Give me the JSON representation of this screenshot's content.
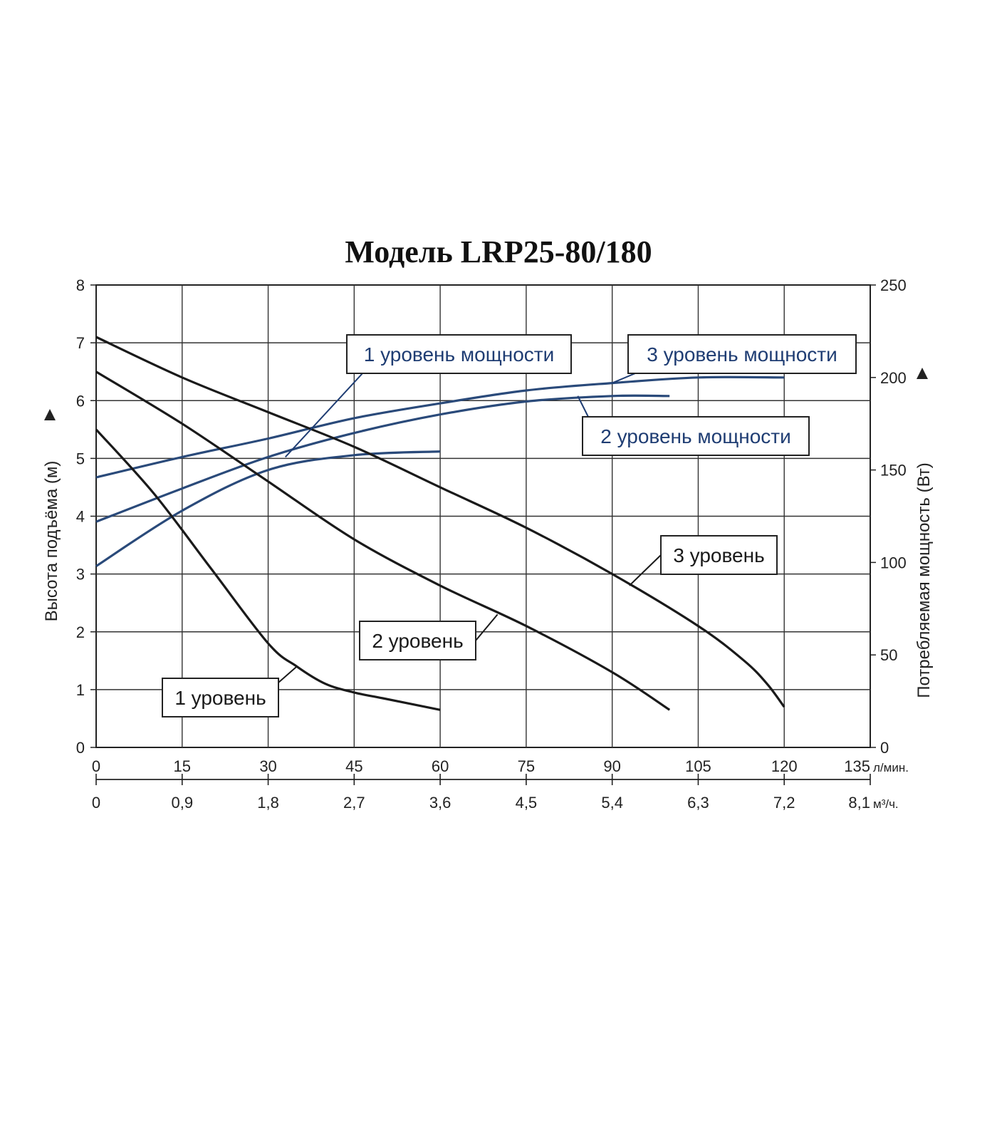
{
  "chart_data": {
    "type": "line",
    "title": "Модель LRP25-80/180",
    "x": {
      "label_unit": "л/мин.",
      "range": [
        0,
        135
      ],
      "ticks": [
        "0",
        "15",
        "30",
        "45",
        "60",
        "75",
        "90",
        "105",
        "120",
        "135"
      ],
      "secondary_ticks": [
        "0",
        "0,9",
        "1,8",
        "2,7",
        "3,6",
        "4,5",
        "5,4",
        "6,3",
        "7,2",
        "8,1"
      ],
      "secondary_unit": "м³/ч."
    },
    "y_left": {
      "label": "Высота подъёма (м)",
      "range": [
        0,
        8
      ],
      "ticks": [
        "0",
        "1",
        "2",
        "3",
        "4",
        "5",
        "6",
        "7",
        "8"
      ]
    },
    "y_right": {
      "label": "Потребляемая мощность (Вт)",
      "range": [
        0,
        250
      ],
      "ticks": [
        "0",
        "50",
        "100",
        "150",
        "200",
        "250"
      ]
    },
    "grid": true,
    "head_series": [
      {
        "name": "1 уровень",
        "axis": "left",
        "color": "#1a1a1a",
        "points": [
          [
            0,
            5.5
          ],
          [
            10,
            4.4
          ],
          [
            20,
            3.1
          ],
          [
            30,
            1.8
          ],
          [
            35,
            1.4
          ],
          [
            40,
            1.1
          ],
          [
            45,
            0.95
          ],
          [
            50,
            0.85
          ],
          [
            60,
            0.65
          ]
        ]
      },
      {
        "name": "2 уровень",
        "axis": "left",
        "color": "#1a1a1a",
        "points": [
          [
            0,
            6.5
          ],
          [
            15,
            5.6
          ],
          [
            30,
            4.6
          ],
          [
            45,
            3.6
          ],
          [
            60,
            2.8
          ],
          [
            75,
            2.1
          ],
          [
            90,
            1.3
          ],
          [
            100,
            0.65
          ]
        ]
      },
      {
        "name": "3 уровень",
        "axis": "left",
        "color": "#1a1a1a",
        "points": [
          [
            0,
            7.1
          ],
          [
            15,
            6.4
          ],
          [
            30,
            5.8
          ],
          [
            45,
            5.2
          ],
          [
            60,
            4.5
          ],
          [
            75,
            3.8
          ],
          [
            90,
            3.0
          ],
          [
            105,
            2.1
          ],
          [
            113,
            1.5
          ],
          [
            117,
            1.1
          ],
          [
            120,
            0.7
          ]
        ]
      }
    ],
    "power_series": [
      {
        "name": "1 уровень мощности",
        "axis": "right",
        "color": "#2a4a7a",
        "points": [
          [
            0,
            98
          ],
          [
            15,
            128
          ],
          [
            30,
            150
          ],
          [
            45,
            158
          ],
          [
            60,
            160
          ]
        ]
      },
      {
        "name": "2 уровень мощности",
        "axis": "right",
        "color": "#2a4a7a",
        "points": [
          [
            0,
            122
          ],
          [
            15,
            140
          ],
          [
            30,
            157
          ],
          [
            45,
            170
          ],
          [
            60,
            180
          ],
          [
            75,
            187
          ],
          [
            90,
            190
          ],
          [
            100,
            190
          ]
        ]
      },
      {
        "name": "3 уровень мощности",
        "axis": "right",
        "color": "#2a4a7a",
        "points": [
          [
            0,
            146
          ],
          [
            15,
            157
          ],
          [
            30,
            167
          ],
          [
            45,
            178
          ],
          [
            60,
            186
          ],
          [
            75,
            193
          ],
          [
            90,
            197
          ],
          [
            105,
            200
          ],
          [
            120,
            200
          ]
        ]
      }
    ],
    "callouts": [
      {
        "text": "1 уровень мощности",
        "color": "#1f3d73",
        "series": "1 уровень мощности",
        "at": [
          33,
          157
        ]
      },
      {
        "text": "3 уровень мощности",
        "color": "#1f3d73",
        "series": "3 уровень мощности",
        "at": [
          90,
          197
        ]
      },
      {
        "text": "2 уровень мощности",
        "color": "#1f3d73",
        "series": "2 уровень мощности",
        "at": [
          84,
          190
        ]
      },
      {
        "text": "3 уровень",
        "color": "#1a1a1a",
        "series": "3 уровень",
        "at": [
          93,
          2.8
        ]
      },
      {
        "text": "2 уровень",
        "color": "#1a1a1a",
        "series": "2 уровень",
        "at": [
          70,
          2.3
        ]
      },
      {
        "text": "1 уровень",
        "color": "#1a1a1a",
        "series": "1 уровень",
        "at": [
          35,
          1.4
        ]
      }
    ]
  }
}
